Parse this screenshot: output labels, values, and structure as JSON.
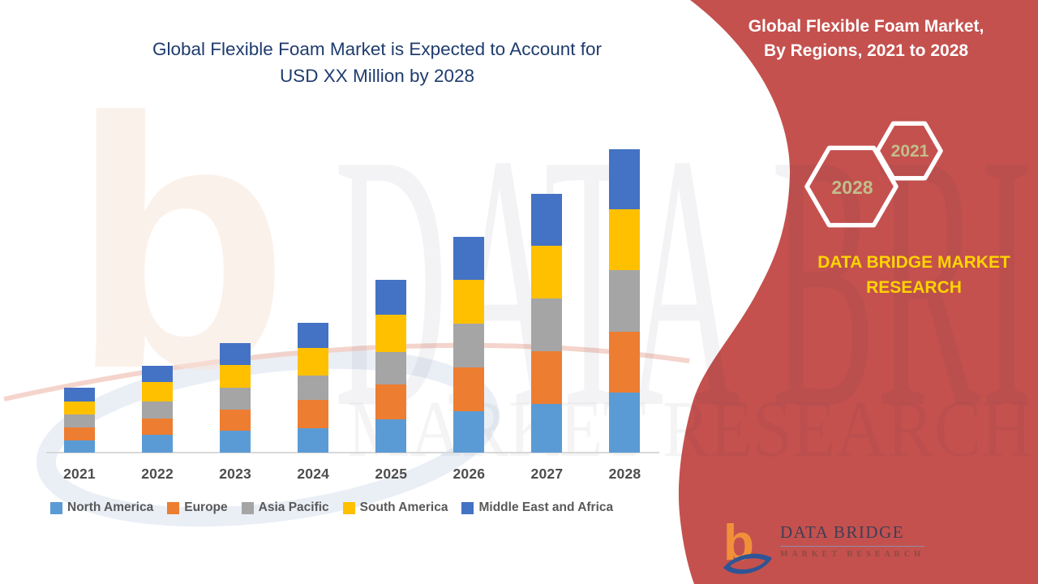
{
  "page": {
    "title_line1": "Global Flexible Foam Market is Expected to Account for",
    "title_line2": "USD XX Million by 2028"
  },
  "colors": {
    "panel_red": "#C4514E",
    "title_blue": "#1F3C6E",
    "brand_yellow": "#FFD400",
    "hex_label": "#C3BE8C",
    "axis_label": "#4D4D4D",
    "legend_text": "#595959",
    "axis_line": "#D8D8D8"
  },
  "right_panel": {
    "heading_line1": "Global Flexible Foam Market,",
    "heading_line2": "By Regions, 2021 to 2028",
    "hexagon_large_label": "2028",
    "hexagon_small_label": "2021",
    "brand_line1": "DATA BRIDGE MARKET",
    "brand_line2": "RESEARCH"
  },
  "watermark": {
    "big_text": "DATA BRIDGE",
    "sub_text": "MARKET RESEARCH"
  },
  "footer_logo": {
    "name_text": "DATA BRIDGE",
    "tagline_text": "MARKET RESEARCH",
    "mark_orange": "#F0913A",
    "mark_blue": "#2E5596"
  },
  "chart_data": {
    "type": "bar",
    "stacked": true,
    "title": "Global Flexible Foam Market is Expected to Account for USD XX Million by 2028",
    "xlabel": "",
    "ylabel": "",
    "value_axis_labels": "none (values shown as USD XX Million placeholder)",
    "value_scale": "relative units (no numeric axis in source)",
    "grid": false,
    "legend_position": "bottom",
    "categories": [
      "2021",
      "2022",
      "2023",
      "2024",
      "2025",
      "2026",
      "2027",
      "2028"
    ],
    "series": [
      {
        "name": "North America",
        "color": "#5B9BD5",
        "values": [
          15,
          22,
          27,
          30,
          41,
          51,
          60,
          74
        ]
      },
      {
        "name": "Europe",
        "color": "#ED7D31",
        "values": [
          16,
          20,
          26,
          35,
          43,
          54,
          65,
          75
        ]
      },
      {
        "name": "Asia Pacific",
        "color": "#A5A5A5",
        "values": [
          16,
          21,
          27,
          30,
          40,
          54,
          65,
          76
        ]
      },
      {
        "name": "South America",
        "color": "#FFC000",
        "values": [
          16,
          24,
          28,
          34,
          46,
          54,
          65,
          75
        ]
      },
      {
        "name": "Middle East and Africa",
        "color": "#4472C4",
        "values": [
          17,
          20,
          27,
          31,
          43,
          53,
          64,
          74
        ]
      }
    ]
  }
}
